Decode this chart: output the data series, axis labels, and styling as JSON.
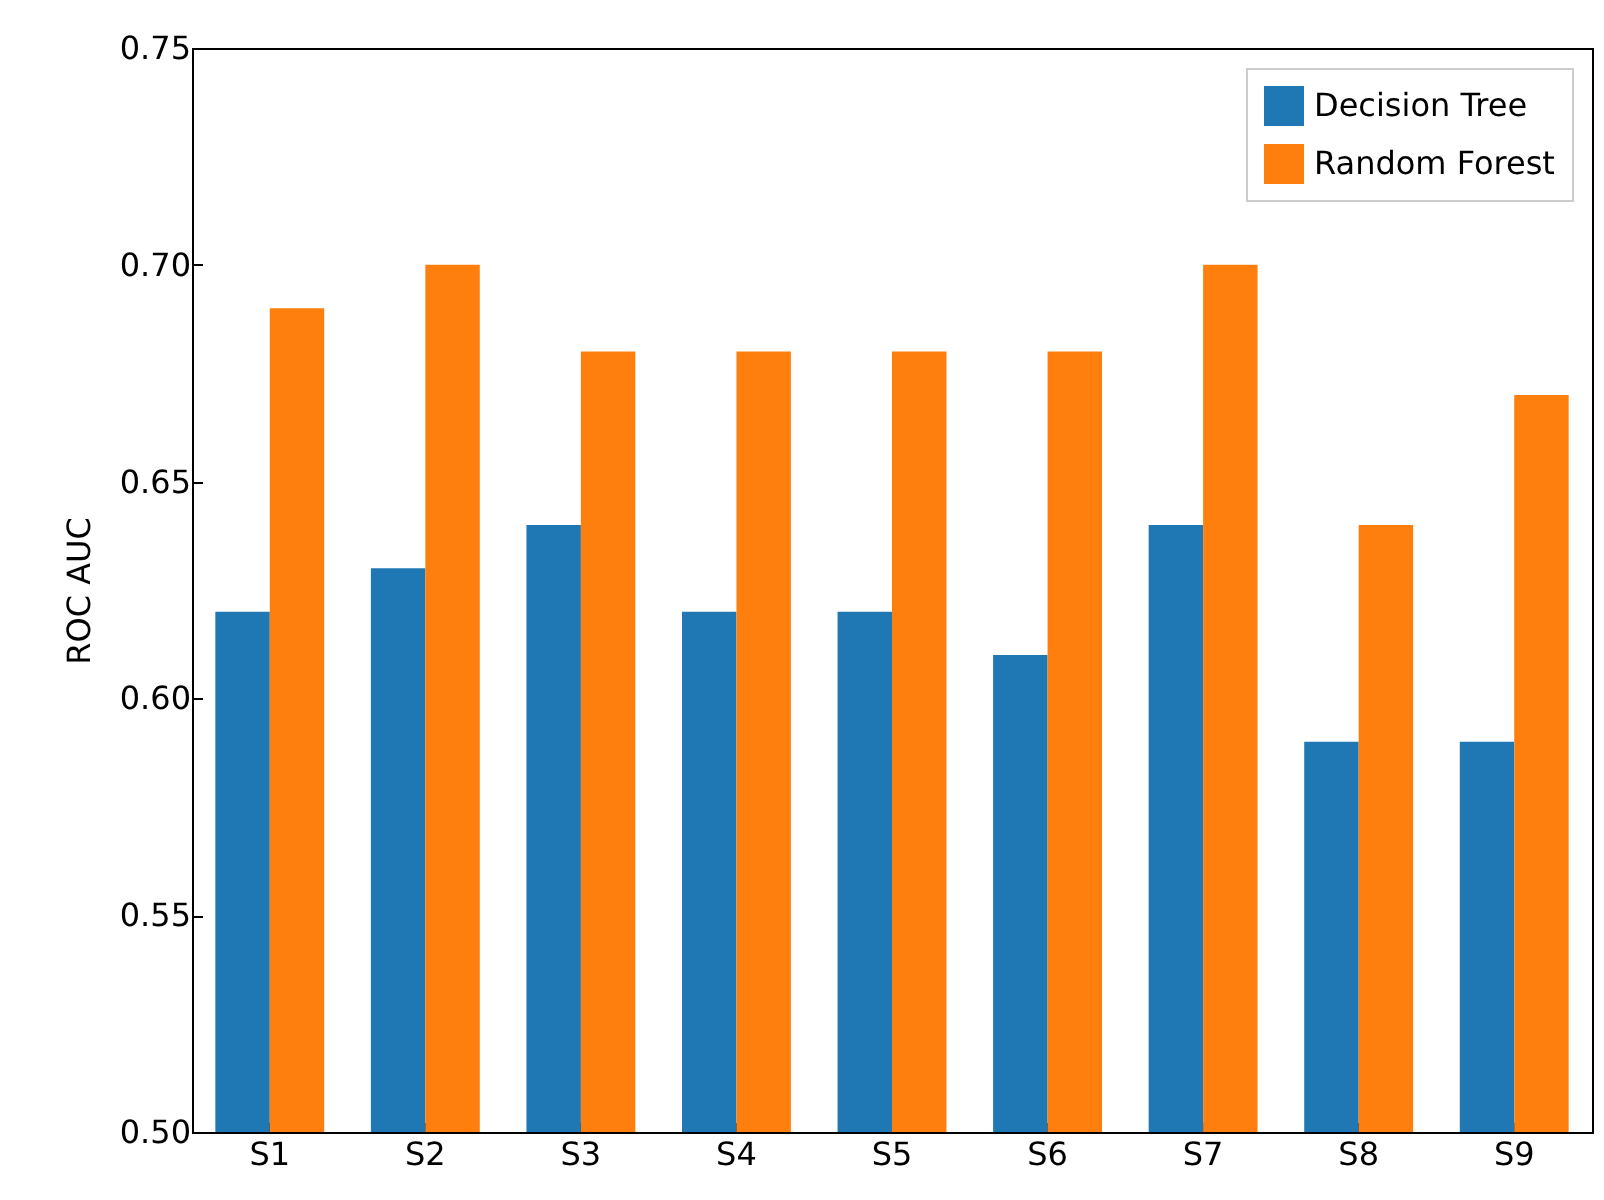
{
  "chart_data": {
    "type": "bar",
    "ylabel": "ROC AUC",
    "categories": [
      "S1",
      "S2",
      "S3",
      "S4",
      "S5",
      "S6",
      "S7",
      "S8",
      "S9"
    ],
    "series": [
      {
        "name": "Decision Tree",
        "color": "#1f77b4",
        "values": [
          0.62,
          0.63,
          0.64,
          0.62,
          0.62,
          0.61,
          0.64,
          0.59,
          0.59
        ]
      },
      {
        "name": "Random Forest",
        "color": "#ff7f0e",
        "values": [
          0.69,
          0.7,
          0.68,
          0.68,
          0.68,
          0.68,
          0.7,
          0.64,
          0.67
        ]
      }
    ],
    "ylim": [
      0.5,
      0.75
    ],
    "yticks": [
      {
        "value": 0.5,
        "label": "0.50"
      },
      {
        "value": 0.55,
        "label": "0.55"
      },
      {
        "value": 0.6,
        "label": "0.60"
      },
      {
        "value": 0.65,
        "label": "0.65"
      },
      {
        "value": 0.7,
        "label": "0.70"
      },
      {
        "value": 0.75,
        "label": "0.75"
      }
    ],
    "grid": false,
    "legend": "top right"
  }
}
